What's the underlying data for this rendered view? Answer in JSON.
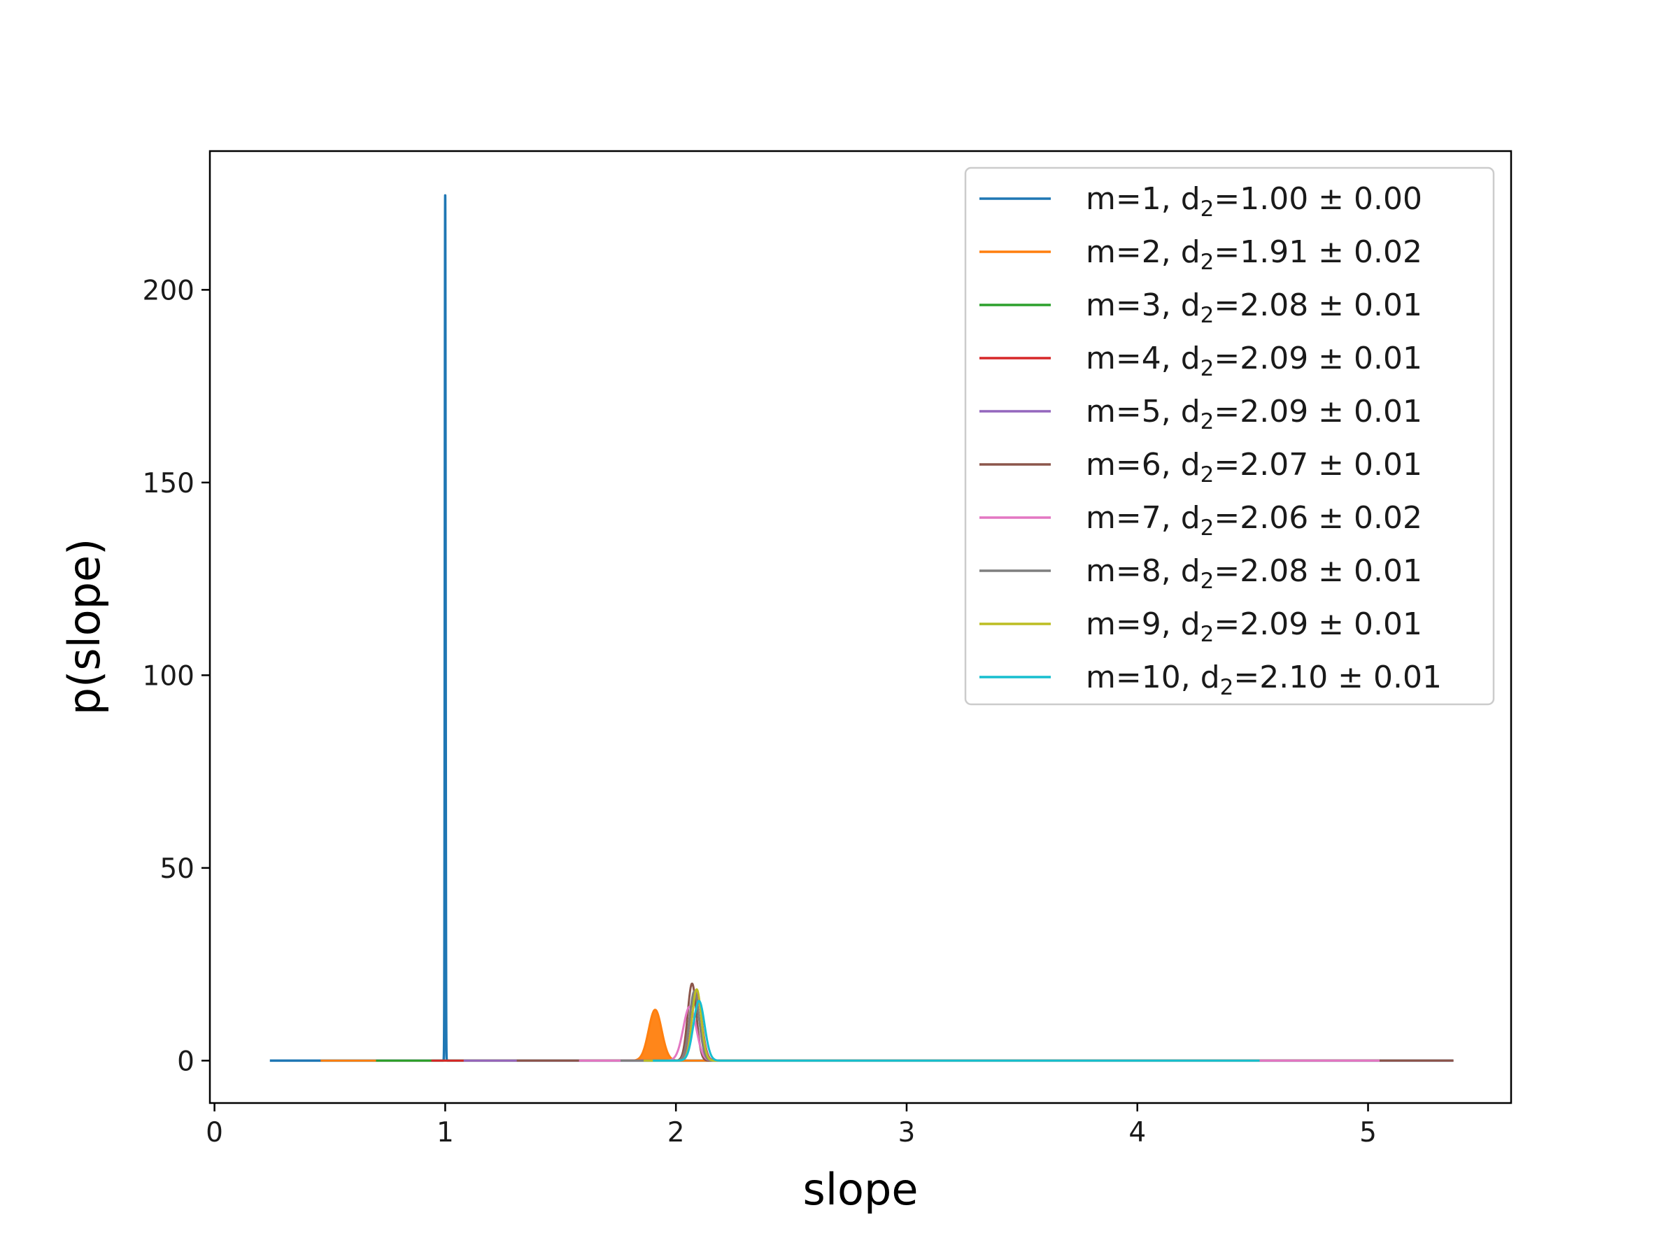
{
  "chart_data": {
    "type": "line",
    "title": "",
    "xlabel": "slope",
    "ylabel": "p(slope)",
    "xlim": [
      -0.02,
      5.62
    ],
    "ylim": [
      -11,
      236
    ],
    "xticks": [
      0,
      1,
      2,
      3,
      4,
      5
    ],
    "yticks": [
      0,
      50,
      100,
      150,
      200
    ],
    "grid": false,
    "legend_position": "top-right",
    "series": [
      {
        "name": "m=1, d2=1.00 ± 0.00",
        "m": "1",
        "d2": "1.00 ± 0.00",
        "color": "#1f77b4",
        "mean": 1.0,
        "sd": 0.0018,
        "peak": 224.5,
        "range": [
          0.24,
          5.37
        ]
      },
      {
        "name": "m=2, d2=1.91 ± 0.02",
        "m": "2",
        "d2": "1.91 ± 0.02",
        "color": "#ff7f0e",
        "mean": 1.91,
        "sd": 0.028,
        "peak": 13.2,
        "range": [
          0.46,
          5.37
        ]
      },
      {
        "name": "m=3, d2=2.08 ± 0.01",
        "m": "3",
        "d2": "2.08 ± 0.01",
        "color": "#2ca02c",
        "mean": 2.08,
        "sd": 0.022,
        "peak": 17.0,
        "range": [
          0.7,
          5.37
        ]
      },
      {
        "name": "m=4, d2=2.09 ± 0.01",
        "m": "4",
        "d2": "2.09 ± 0.01",
        "color": "#d62728",
        "mean": 2.09,
        "sd": 0.022,
        "peak": 17.5,
        "range": [
          0.94,
          5.37
        ]
      },
      {
        "name": "m=5, d2=2.09 ± 0.01",
        "m": "5",
        "d2": "2.09 ± 0.01",
        "color": "#9467bd",
        "mean": 2.09,
        "sd": 0.021,
        "peak": 18.0,
        "range": [
          1.08,
          5.37
        ]
      },
      {
        "name": "m=6, d2=2.07 ± 0.01",
        "m": "6",
        "d2": "2.07 ± 0.01",
        "color": "#8c564b",
        "mean": 2.07,
        "sd": 0.019,
        "peak": 20.0,
        "range": [
          1.31,
          5.37
        ]
      },
      {
        "name": "m=7, d2=2.06 ± 0.02",
        "m": "7",
        "d2": "2.06 ± 0.02",
        "color": "#e377c2",
        "mean": 2.06,
        "sd": 0.028,
        "peak": 14.0,
        "range": [
          1.58,
          5.05
        ]
      },
      {
        "name": "m=8, d2=2.08 ± 0.01",
        "m": "8",
        "d2": "2.08 ± 0.01",
        "color": "#7f7f7f",
        "mean": 2.08,
        "sd": 0.021,
        "peak": 18.0,
        "range": [
          1.76,
          4.53
        ]
      },
      {
        "name": "m=9, d2=2.09 ± 0.01",
        "m": "9",
        "d2": "2.09 ± 0.01",
        "color": "#bcbd22",
        "mean": 2.09,
        "sd": 0.02,
        "peak": 18.5,
        "range": [
          1.86,
          4.53
        ]
      },
      {
        "name": "m=10, d2=2.10 ± 0.01",
        "m": "10",
        "d2": "2.10 ± 0.01",
        "color": "#17becf",
        "mean": 2.1,
        "sd": 0.024,
        "peak": 15.5,
        "range": [
          1.9,
          4.53
        ]
      }
    ]
  }
}
